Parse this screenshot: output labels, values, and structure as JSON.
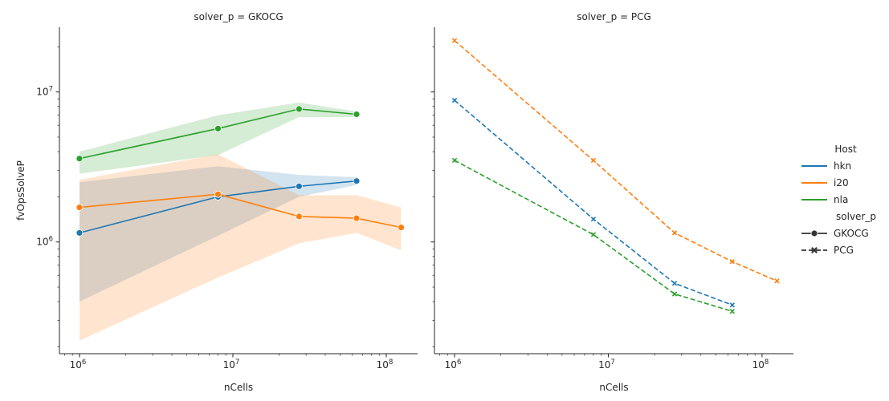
{
  "chart_data": {
    "type": "line",
    "facet_var": "solver_p",
    "panels": [
      {
        "title": "solver_p = GKOCG",
        "xlabel": "nCells",
        "ylabel": "fvOpsSolveP",
        "xscale": "log",
        "yscale": "log",
        "xlim": [
          740000,
          160000000
        ],
        "ylim": [
          180000,
          27000000
        ],
        "xticks": [
          {
            "value": 1000000,
            "base": "10",
            "exp": "6"
          },
          {
            "value": 10000000,
            "base": "10",
            "exp": "7"
          },
          {
            "value": 100000000,
            "base": "10",
            "exp": "8"
          }
        ],
        "yticks": [
          {
            "value": 1000000,
            "base": "10",
            "exp": "6"
          },
          {
            "value": 10000000,
            "base": "10",
            "exp": "7"
          }
        ],
        "series": [
          {
            "name": "hkn",
            "color": "#1f77b4",
            "marker": "circle",
            "dash": "solid",
            "x": [
              1000000,
              8000000,
              27000000,
              64000000
            ],
            "y": [
              1150000,
              2000000,
              2350000,
              2550000
            ],
            "band_low": [
              400000,
              1100000,
              2000000,
              2400000
            ],
            "band_high": [
              2500000,
              3200000,
              2800000,
              2700000
            ]
          },
          {
            "name": "i20",
            "color": "#ff7f0e",
            "marker": "circle",
            "dash": "solid",
            "x": [
              1000000,
              8000000,
              27000000,
              64000000,
              125000000
            ],
            "y": [
              1700000,
              2080000,
              1480000,
              1440000,
              1250000
            ],
            "band_low": [
              220000,
              580000,
              980000,
              1150000,
              880000
            ],
            "band_high": [
              2600000,
              3850000,
              2050000,
              2050000,
              1700000
            ]
          },
          {
            "name": "nla",
            "color": "#2ca02c",
            "marker": "circle",
            "dash": "solid",
            "x": [
              1000000,
              8000000,
              27000000,
              64000000
            ],
            "y": [
              3600000,
              5700000,
              7700000,
              7100000
            ],
            "band_low": [
              2850000,
              3800000,
              6800000,
              6800000
            ],
            "band_high": [
              4000000,
              7000000,
              8500000,
              7400000
            ]
          }
        ]
      },
      {
        "title": "solver_p = PCG",
        "xlabel": "nCells",
        "ylabel": "",
        "xscale": "log",
        "yscale": "log",
        "xlim": [
          740000,
          160000000
        ],
        "ylim": [
          180000,
          27000000
        ],
        "xticks": [
          {
            "value": 1000000,
            "base": "10",
            "exp": "6"
          },
          {
            "value": 10000000,
            "base": "10",
            "exp": "7"
          },
          {
            "value": 100000000,
            "base": "10",
            "exp": "8"
          }
        ],
        "yticks": [],
        "series": [
          {
            "name": "hkn",
            "color": "#1f77b4",
            "marker": "x",
            "dash": "dashed",
            "x": [
              1000000,
              8000000,
              27000000,
              64000000
            ],
            "y": [
              8800000,
              1420000,
              530000,
              380000
            ]
          },
          {
            "name": "i20",
            "color": "#ff7f0e",
            "marker": "x",
            "dash": "dashed",
            "x": [
              1000000,
              8000000,
              27000000,
              64000000,
              125000000
            ],
            "y": [
              22000000,
              3500000,
              1150000,
              740000,
              550000
            ]
          },
          {
            "name": "nla",
            "color": "#2ca02c",
            "marker": "x",
            "dash": "dashed",
            "x": [
              1000000,
              8000000,
              27000000,
              64000000
            ],
            "y": [
              3500000,
              1120000,
              450000,
              345000
            ]
          }
        ]
      }
    ],
    "legend": {
      "placement": "right",
      "hue_title": "Host",
      "hue_entries": [
        {
          "label": "hkn",
          "color": "#1f77b4"
        },
        {
          "label": "i20",
          "color": "#ff7f0e"
        },
        {
          "label": "nla",
          "color": "#2ca02c"
        }
      ],
      "style_title": "solver_p",
      "style_entries": [
        {
          "label": "GKOCG",
          "marker": "circle",
          "dash": "solid"
        },
        {
          "label": "PCG",
          "marker": "x",
          "dash": "dashed"
        }
      ]
    }
  }
}
